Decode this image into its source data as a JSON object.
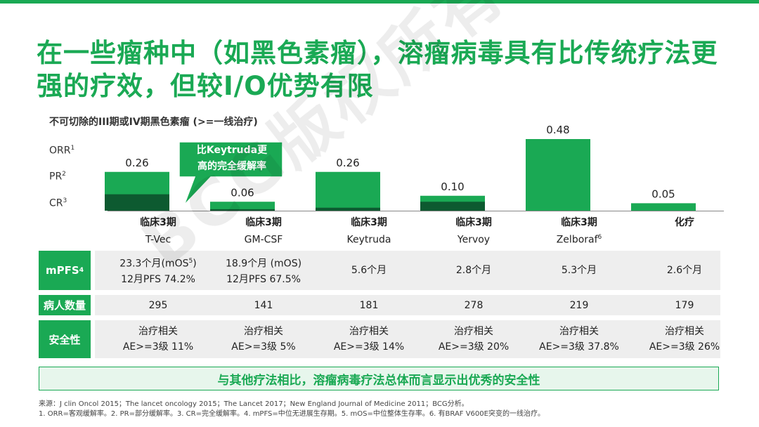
{
  "title": "在一些瘤种中（如黑色素瘤），溶瘤病毒具有比传统疗法更强的疗效，但较I/O优势有限",
  "colors": {
    "green": "#1aa954",
    "dark_green": "#0d5a30",
    "light_gray": "#eeeeee"
  },
  "chart_data": {
    "type": "bar",
    "title": "不可切除的III期或IV期黑色素瘤 (>=一线治疗)",
    "categories": [
      {
        "line1": "临床3期",
        "line2": "T-Vec",
        "sup": ""
      },
      {
        "line1": "临床3期",
        "line2": "GM-CSF",
        "sup": ""
      },
      {
        "line1": "临床3期",
        "line2": "Keytruda",
        "sup": ""
      },
      {
        "line1": "临床3期",
        "line2": "Yervoy",
        "sup": ""
      },
      {
        "line1": "临床3期",
        "line2": "Zelboraf",
        "sup": "6"
      },
      {
        "line1": "化疗",
        "line2": "",
        "sup": ""
      }
    ],
    "y_labels": [
      {
        "text": "ORR",
        "sup": "1"
      },
      {
        "text": "PR",
        "sup": "2"
      },
      {
        "text": "CR",
        "sup": "3"
      }
    ],
    "series": [
      {
        "name": "ORR",
        "values": [
          0.26,
          0.06,
          0.26,
          0.1,
          0.48,
          0.05
        ]
      },
      {
        "name": "CR",
        "values": [
          0.11,
          0.01,
          0.02,
          0.06,
          0.0,
          0.0
        ]
      }
    ],
    "data_labels": [
      "0.26",
      "0.06",
      "0.26",
      "0.10",
      "0.48",
      "0.05"
    ],
    "ylim": [
      0,
      0.48
    ],
    "callout": {
      "line1": "比Keytruda更",
      "line2": "高的完全缓解率"
    }
  },
  "table": {
    "rows": [
      {
        "header": "mPFS",
        "header_sup": "4",
        "cells": [
          {
            "l1": "23.3个月(mOS",
            "l1_sup": "5",
            "l1_tail": ")",
            "l2": "12月PFS 74.2%"
          },
          {
            "l1": "18.9个月 (mOS)",
            "l1_sup": "",
            "l1_tail": "",
            "l2": "12月PFS 67.5%"
          },
          {
            "l1": "5.6个月",
            "l1_sup": "",
            "l1_tail": "",
            "l2": ""
          },
          {
            "l1": "2.8个月",
            "l1_sup": "",
            "l1_tail": "",
            "l2": ""
          },
          {
            "l1": "5.3个月",
            "l1_sup": "",
            "l1_tail": "",
            "l2": ""
          },
          {
            "l1": "2.6个月",
            "l1_sup": "",
            "l1_tail": "",
            "l2": ""
          }
        ]
      },
      {
        "header": "病人数量",
        "header_sup": "",
        "cells": [
          {
            "l1": "295",
            "l1_sup": "",
            "l1_tail": "",
            "l2": ""
          },
          {
            "l1": "141",
            "l1_sup": "",
            "l1_tail": "",
            "l2": ""
          },
          {
            "l1": "181",
            "l1_sup": "",
            "l1_tail": "",
            "l2": ""
          },
          {
            "l1": "278",
            "l1_sup": "",
            "l1_tail": "",
            "l2": ""
          },
          {
            "l1": "219",
            "l1_sup": "",
            "l1_tail": "",
            "l2": ""
          },
          {
            "l1": "179",
            "l1_sup": "",
            "l1_tail": "",
            "l2": ""
          }
        ]
      },
      {
        "header": "安全性",
        "header_sup": "",
        "cells": [
          {
            "l1": "治疗相关",
            "l1_sup": "",
            "l1_tail": "",
            "l2": "AE>=3级 11%"
          },
          {
            "l1": "治疗相关",
            "l1_sup": "",
            "l1_tail": "",
            "l2": "AE>=3级 5%"
          },
          {
            "l1": "治疗相关",
            "l1_sup": "",
            "l1_tail": "",
            "l2": "AE>=3级 14%"
          },
          {
            "l1": "治疗相关",
            "l1_sup": "",
            "l1_tail": "",
            "l2": "AE>=3级 20%"
          },
          {
            "l1": "治疗相关",
            "l1_sup": "",
            "l1_tail": "",
            "l2": "AE>=3级 37.8%"
          },
          {
            "l1": "治疗相关",
            "l1_sup": "",
            "l1_tail": "",
            "l2": "AE>=3级 26%"
          }
        ]
      }
    ]
  },
  "conclusion": "与其他疗法相比，溶瘤病毒疗法总体而言显示出优秀的安全性",
  "footnotes": {
    "source": "来源：J clin Oncol 2015；The lancet oncology 2015；The Lancet 2017；New England Journal of Medicine 2011；BCG分析。",
    "notes": "1. ORR=客观缓解率。2. PR=部分缓解率。3. CR=完全缓解率。4. mPFS=中位无进展生存期。5. mOS=中位整体生存率。6. 有BRAF V600E突变的一线治疗。"
  },
  "watermark": "BCG版权所有"
}
